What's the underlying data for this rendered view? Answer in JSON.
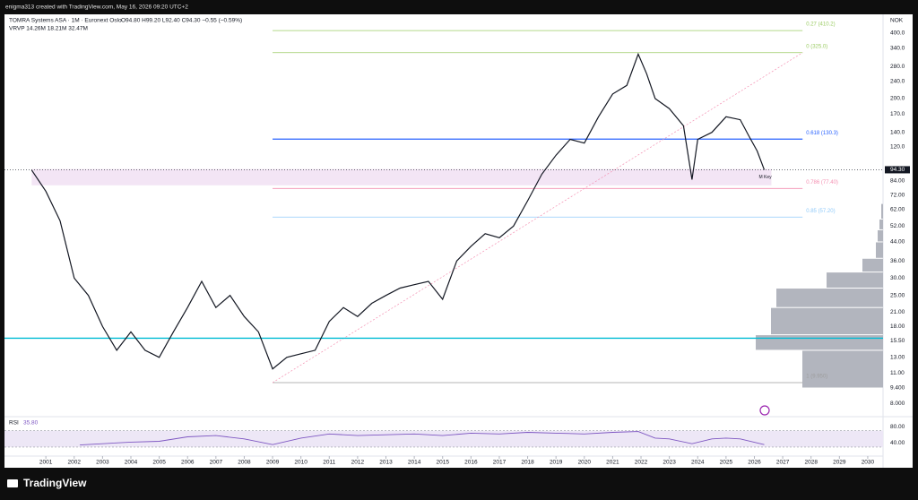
{
  "header": {
    "credit": "enigma313 created with TradingView.com, May 16, 2026 09:20 UTC+2",
    "brand": "TradingView"
  },
  "chart_data": [
    {
      "type": "line",
      "title": "TOMRA Systems ASA · 1M · Euronext Oslo",
      "ohlc": "O94.80 H99.20 L92.40 C94.30 −0.55 (−0.59%)",
      "indicator": "VRVP 14.26M 18.21M 32.47M",
      "currency": "NOK",
      "log_scale": true,
      "xlim": [
        1999.54,
        2030.54
      ],
      "ylim": [
        7.28,
        469
      ],
      "xticks": [
        2001,
        2002,
        2003,
        2004,
        2005,
        2006,
        2007,
        2008,
        2009,
        2010,
        2011,
        2012,
        2013,
        2014,
        2015,
        2016,
        2017,
        2018,
        2019,
        2020,
        2021,
        2022,
        2023,
        2024,
        2025,
        2026,
        2027,
        2028,
        2029,
        2030
      ],
      "yticks": [
        {
          "value": 400,
          "label": "400.0"
        },
        {
          "value": 340,
          "label": "340.0"
        },
        {
          "value": 280,
          "label": "280.0"
        },
        {
          "value": 240,
          "label": "240.0"
        },
        {
          "value": 200,
          "label": "200.0"
        },
        {
          "value": 170,
          "label": "170.0"
        },
        {
          "value": 140,
          "label": "140.0"
        },
        {
          "value": 120,
          "label": "120.0"
        },
        {
          "value": 84,
          "label": "84.00"
        },
        {
          "value": 72,
          "label": "72.00"
        },
        {
          "value": 62,
          "label": "62.00"
        },
        {
          "value": 52,
          "label": "52.00"
        },
        {
          "value": 44,
          "label": "44.00"
        },
        {
          "value": 36,
          "label": "36.00"
        },
        {
          "value": 30,
          "label": "30.00"
        },
        {
          "value": 25,
          "label": "25.00"
        },
        {
          "value": 21,
          "label": "21.00"
        },
        {
          "value": 18,
          "label": "18.00"
        },
        {
          "value": 15.5,
          "label": "15.50"
        },
        {
          "value": 13,
          "label": "13.00"
        },
        {
          "value": 11,
          "label": "11.00"
        },
        {
          "value": 9.4,
          "label": "9.400"
        },
        {
          "value": 8,
          "label": "8.000"
        }
      ],
      "series": [
        {
          "name": "TOMRA",
          "color": "#131722",
          "x": [
            2000.5,
            2001,
            2001.5,
            2002,
            2002.5,
            2003,
            2003.5,
            2004,
            2004.5,
            2005,
            2005.5,
            2006,
            2006.5,
            2007,
            2007.5,
            2008,
            2008.5,
            2009,
            2009.5,
            2010,
            2010.5,
            2011,
            2011.5,
            2012,
            2012.5,
            2013,
            2013.5,
            2014,
            2014.5,
            2015,
            2015.5,
            2016,
            2016.5,
            2017,
            2017.5,
            2018,
            2018.5,
            2019,
            2019.5,
            2020,
            2020.5,
            2021,
            2021.5,
            2021.9,
            2022.2,
            2022.5,
            2023,
            2023.5,
            2023.8,
            2024,
            2024.5,
            2025,
            2025.5,
            2025.8,
            2026.1,
            2026.35
          ],
          "values": [
            94,
            75,
            55,
            30,
            25,
            18,
            14,
            17,
            14,
            13,
            17,
            22,
            29,
            22,
            25,
            20,
            17,
            11.5,
            13,
            13.5,
            14,
            19,
            22,
            20,
            23,
            25,
            27,
            28,
            29,
            24,
            36,
            42,
            48,
            46,
            52,
            68,
            90,
            110,
            130,
            125,
            165,
            210,
            230,
            320,
            260,
            200,
            180,
            150,
            85,
            130,
            140,
            165,
            160,
            135,
            115,
            94.3
          ]
        }
      ],
      "last_price": {
        "value": 94.3,
        "label": "94.30"
      },
      "fib_start": 2009,
      "fib_end": 2027.7,
      "fib_levels": [
        {
          "label": "0.27 (410.2)",
          "price": 410.2,
          "color": "#9ccc65"
        },
        {
          "label": "0 (325.0)",
          "price": 325,
          "color": "#9ccc65"
        },
        {
          "label": "0.618 (130.3)",
          "price": 130.3,
          "color": "#2962ff"
        },
        {
          "label": "0.786 (77.40)",
          "price": 77.4,
          "color": "#f48fb1"
        },
        {
          "label": "0.85 (57.20)",
          "price": 57.2,
          "color": "#90caf9"
        },
        {
          "label": "1 (9.950)",
          "price": 9.95,
          "color": "#9e9e9e"
        }
      ],
      "trend_line": {
        "x": [
          2009,
          2027.7
        ],
        "y": [
          9.95,
          325
        ]
      },
      "horizontal_line": {
        "price": 15.9,
        "color": "#00bcd4"
      },
      "key_zone": {
        "label": "M Key",
        "low": 80,
        "high": 95,
        "from": 2000.5,
        "to": 2026.6,
        "color": "#f3e5f5"
      },
      "volume_profile": {
        "bins": [
          9.4,
          14,
          16.5,
          22,
          27,
          32,
          37,
          44,
          50,
          56,
          66
        ],
        "values": [
          9.0,
          14.2,
          12.5,
          11.9,
          6.3,
          2.3,
          0.8,
          0.6,
          0.4,
          0.2
        ],
        "color": "#b2b5be"
      }
    },
    {
      "type": "line",
      "title": "RSI",
      "last_label": "35.80",
      "ylim": [
        10,
        100
      ],
      "band": [
        30,
        70
      ],
      "yticks": [
        {
          "value": 80,
          "label": "80.00"
        },
        {
          "value": 40,
          "label": "40.00"
        }
      ],
      "series": [
        {
          "name": "RSI",
          "color": "#7e57c2",
          "x": [
            2002.2,
            2003,
            2004,
            2005,
            2006,
            2007,
            2008,
            2009,
            2010,
            2011,
            2012,
            2013,
            2014,
            2015,
            2016,
            2017,
            2018,
            2019,
            2020,
            2021,
            2021.9,
            2022.5,
            2023,
            2023.8,
            2024.5,
            2025,
            2025.5,
            2026.35
          ],
          "values": [
            35,
            38,
            42,
            44,
            55,
            58,
            50,
            36,
            52,
            62,
            58,
            60,
            62,
            58,
            64,
            62,
            66,
            64,
            62,
            66,
            68,
            52,
            50,
            38,
            50,
            52,
            50,
            36
          ]
        }
      ]
    }
  ]
}
